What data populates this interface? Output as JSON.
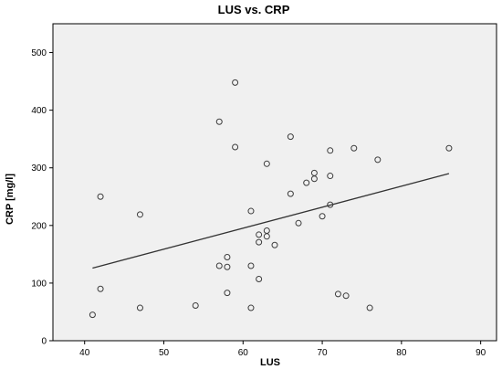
{
  "chart_data": {
    "type": "scatter",
    "title": "LUS vs. CRP",
    "xlabel": "LUS",
    "ylabel": "CRP [mg/l]",
    "xlim": [
      36,
      92
    ],
    "ylim": [
      0,
      550
    ],
    "x_ticks": [
      40,
      50,
      60,
      70,
      80,
      90
    ],
    "y_ticks": [
      0,
      100,
      200,
      300,
      400,
      500
    ],
    "grid": false,
    "points": [
      {
        "x": 41,
        "y": 45
      },
      {
        "x": 42,
        "y": 90
      },
      {
        "x": 42,
        "y": 250
      },
      {
        "x": 47,
        "y": 57
      },
      {
        "x": 47,
        "y": 219
      },
      {
        "x": 54,
        "y": 61
      },
      {
        "x": 57,
        "y": 130
      },
      {
        "x": 57,
        "y": 380
      },
      {
        "x": 58,
        "y": 83
      },
      {
        "x": 58,
        "y": 128
      },
      {
        "x": 58,
        "y": 145
      },
      {
        "x": 59,
        "y": 336
      },
      {
        "x": 59,
        "y": 448
      },
      {
        "x": 61,
        "y": 57
      },
      {
        "x": 61,
        "y": 130
      },
      {
        "x": 61,
        "y": 225
      },
      {
        "x": 62,
        "y": 107
      },
      {
        "x": 62,
        "y": 171
      },
      {
        "x": 62,
        "y": 184
      },
      {
        "x": 63,
        "y": 181
      },
      {
        "x": 63,
        "y": 191
      },
      {
        "x": 63,
        "y": 307
      },
      {
        "x": 64,
        "y": 166
      },
      {
        "x": 66,
        "y": 255
      },
      {
        "x": 66,
        "y": 354
      },
      {
        "x": 67,
        "y": 204
      },
      {
        "x": 68,
        "y": 274
      },
      {
        "x": 69,
        "y": 281
      },
      {
        "x": 69,
        "y": 291
      },
      {
        "x": 70,
        "y": 216
      },
      {
        "x": 71,
        "y": 236
      },
      {
        "x": 71,
        "y": 286
      },
      {
        "x": 71,
        "y": 330
      },
      {
        "x": 72,
        "y": 81
      },
      {
        "x": 73,
        "y": 78
      },
      {
        "x": 74,
        "y": 334
      },
      {
        "x": 76,
        "y": 57
      },
      {
        "x": 77,
        "y": 314
      },
      {
        "x": 86,
        "y": 334
      }
    ],
    "fit_line": {
      "x": [
        41,
        86
      ],
      "y": [
        126,
        290
      ]
    },
    "colors": {
      "plot_background": "#f0f0f0",
      "outer_background": "#ffffff",
      "marker_stroke": "#3c3c3c",
      "fit_line": "#333333",
      "axis": "#000000"
    }
  }
}
